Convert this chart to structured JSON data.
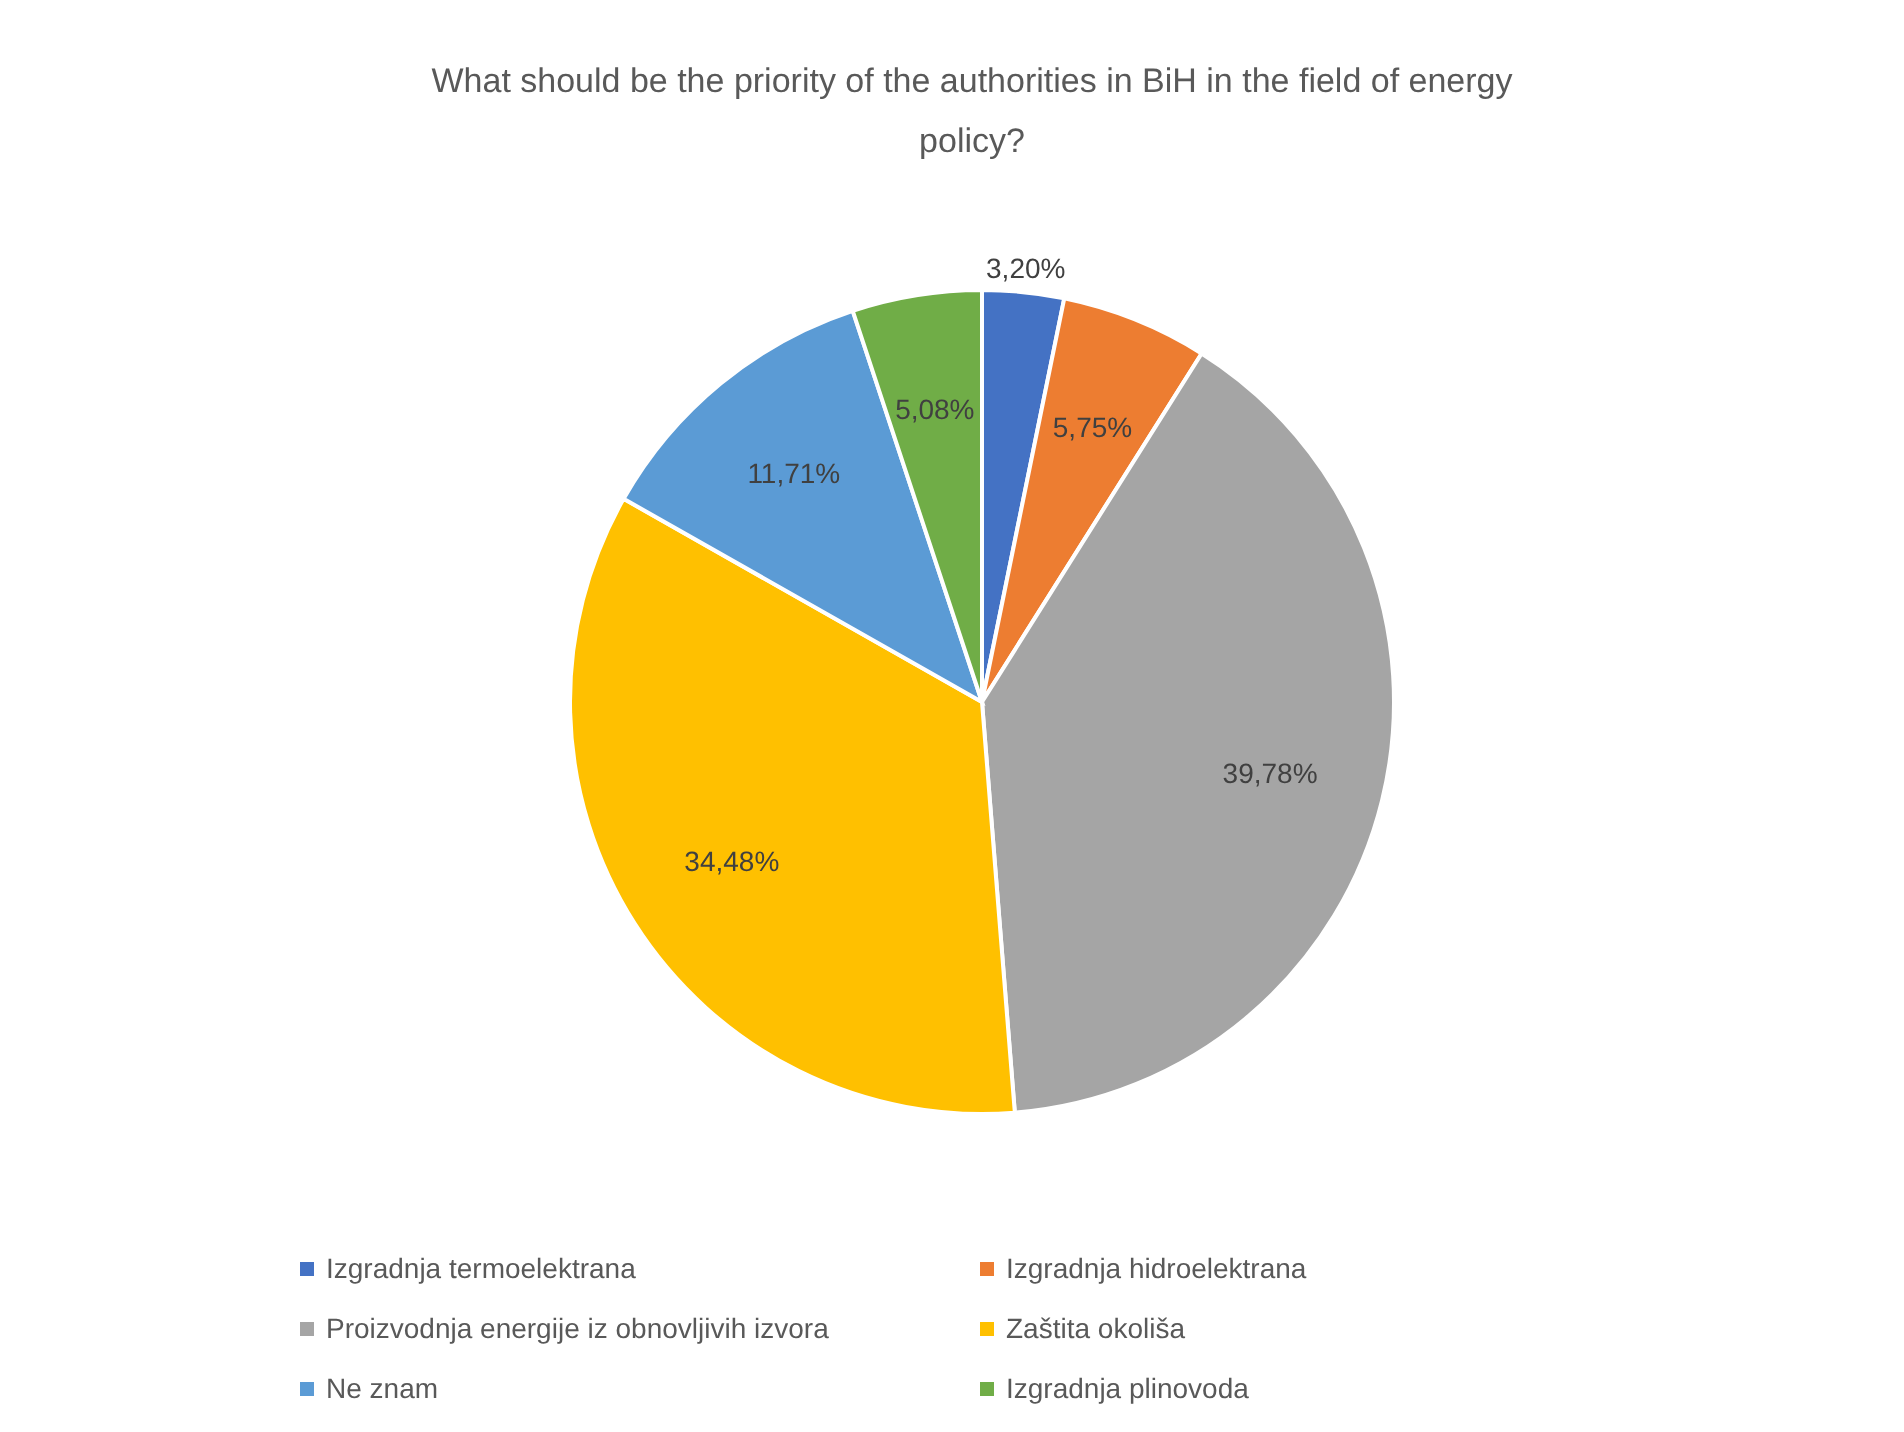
{
  "chart_data": {
    "type": "pie",
    "title": "What should be the priority of the authorities in BiH in the field of energy policy?",
    "categories": [
      "Izgradnja termoelektrana",
      "Izgradnja hidroelektrana",
      "Proizvodnja energije iz obnovljivih izvora",
      "Zaštita okoliša",
      "Ne znam",
      "Izgradnja plinovoda"
    ],
    "values": [
      3.2,
      5.75,
      39.78,
      34.48,
      11.71,
      5.08
    ],
    "colors": [
      "#4472c4",
      "#ed7d31",
      "#a5a5a5",
      "#ffc000",
      "#5b9bd5",
      "#70ad47"
    ],
    "value_labels": [
      "3,20%",
      "5,75%",
      "39,78%",
      "34,48%",
      "11,71%",
      "5,08%"
    ],
    "legend": "bottom"
  }
}
